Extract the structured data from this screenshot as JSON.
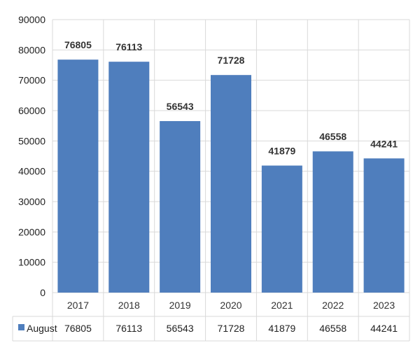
{
  "chart_data": {
    "type": "bar",
    "categories": [
      "2017",
      "2018",
      "2019",
      "2020",
      "2021",
      "2022",
      "2023"
    ],
    "series": [
      {
        "name": "August",
        "values": [
          76805,
          76113,
          56543,
          71728,
          41879,
          46558,
          44241
        ],
        "color": "#4F7EBD"
      }
    ],
    "ylim": [
      0,
      90000
    ],
    "yticks": [
      "0",
      "10000",
      "20000",
      "30000",
      "40000",
      "50000",
      "60000",
      "70000",
      "80000",
      "90000"
    ],
    "grid": true,
    "data_labels": true,
    "legend_placement": "data-table-bottom",
    "data_table": true
  }
}
